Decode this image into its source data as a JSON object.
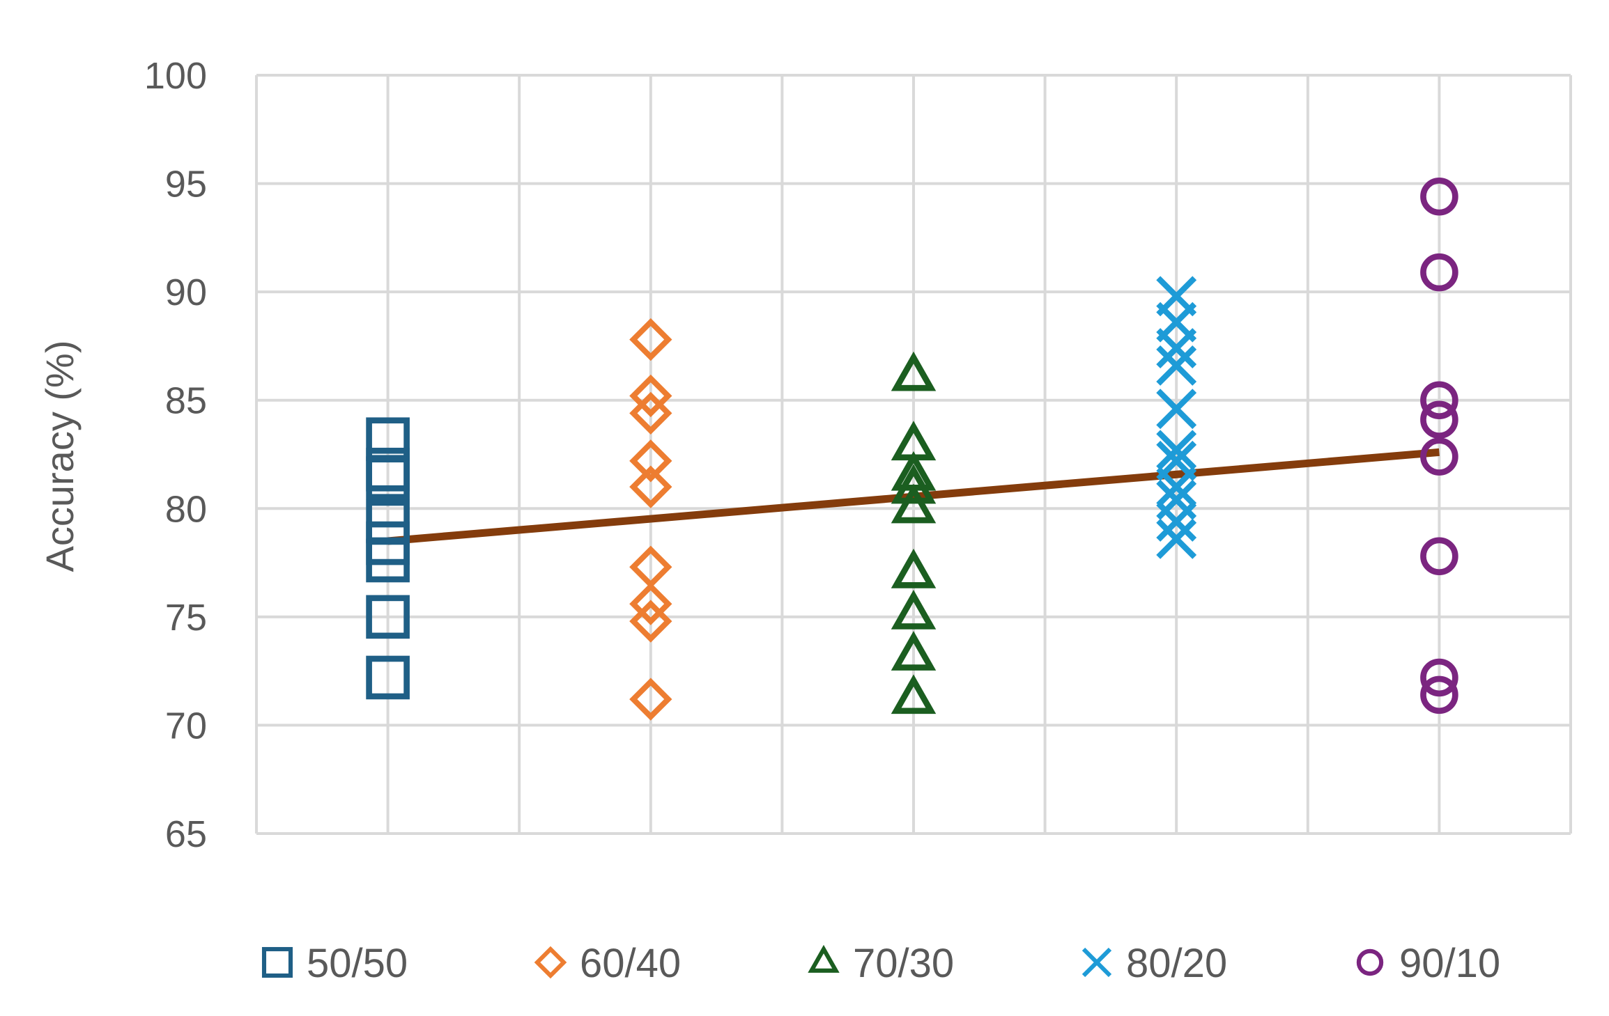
{
  "chart_data": {
    "type": "scatter",
    "ylabel": "Accuracy (%)",
    "ylim": [
      65,
      100
    ],
    "yticks": [
      65,
      70,
      75,
      80,
      85,
      90,
      95,
      100
    ],
    "grid": true,
    "legend_position": "bottom",
    "series": [
      {
        "name": "50/50",
        "color": "#1f5f86",
        "marker": "square",
        "x": 1,
        "values": [
          83.2,
          81.8,
          81.4,
          79.4,
          78.4,
          77.6,
          75.0,
          72.2
        ]
      },
      {
        "name": "60/40",
        "color": "#ed7d31",
        "marker": "diamond",
        "x": 2,
        "values": [
          87.8,
          85.2,
          84.4,
          82.2,
          81.0,
          77.3,
          75.6,
          74.8,
          71.2
        ]
      },
      {
        "name": "70/30",
        "color": "#1b5e20",
        "marker": "triangle",
        "x": 3,
        "values": [
          86.1,
          82.9,
          81.5,
          80.9,
          80.0,
          77.0,
          75.1,
          73.2,
          71.2
        ]
      },
      {
        "name": "80/20",
        "color": "#1e9bd7",
        "marker": "x",
        "x": 4,
        "values": [
          89.8,
          88.6,
          87.4,
          86.6,
          84.6,
          82.7,
          82.2,
          81.0,
          80.4,
          79.4,
          78.6
        ]
      },
      {
        "name": "90/10",
        "color": "#7b2580",
        "marker": "circle",
        "x": 5,
        "values": [
          94.4,
          90.9,
          85.0,
          84.1,
          82.4,
          77.8,
          72.2,
          71.4
        ]
      }
    ],
    "trendline": {
      "color": "#843c0c",
      "points": [
        [
          1,
          78.5
        ],
        [
          5,
          82.6
        ]
      ]
    }
  }
}
